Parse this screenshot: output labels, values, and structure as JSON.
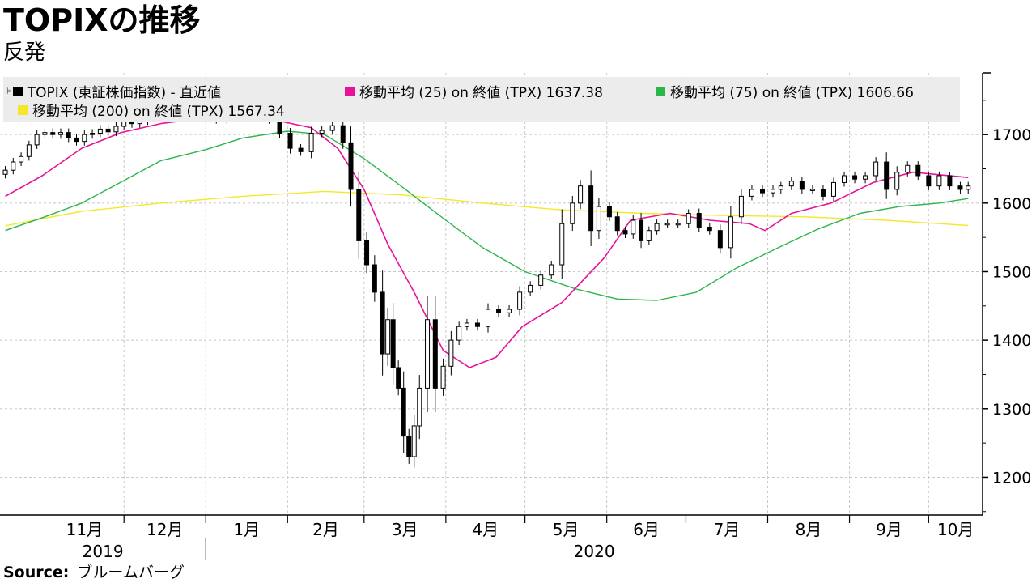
{
  "header": {
    "title": "TOPIXの推移",
    "subtitle": "反発"
  },
  "footer": {
    "source_label": "Source:",
    "source_value": "ブルームバーグ"
  },
  "legend": {
    "items": [
      {
        "label": "TOPIX (東証株価指数) - 直近値",
        "color": "#000000"
      },
      {
        "label": "移動平均 (25)  on 終値 (TPX) 1637.38",
        "color": "#e8119a"
      },
      {
        "label": "移動平均 (75)  on 終値 (TPX) 1606.66",
        "color": "#2bb54a"
      },
      {
        "label": "移動平均 (200)  on 終値 (TPX)  1567.34",
        "color": "#f5e82a"
      }
    ]
  },
  "chart_data": {
    "type": "line",
    "title": "TOPIXの推移",
    "subtitle": "反発",
    "ylim": [
      1145,
      1790
    ],
    "y_ticks": [
      1200,
      1300,
      1400,
      1500,
      1600,
      1700
    ],
    "x_month_labels": [
      "11月",
      "12月",
      "1月",
      "2月",
      "3月",
      "4月",
      "5月",
      "6月",
      "7月",
      "8月",
      "9月",
      "10月"
    ],
    "x_year_labels": [
      "2019",
      "2020"
    ],
    "grid": true,
    "legend_position": "top",
    "axis_position": "right",
    "series": [
      {
        "name": "TOPIX (東証株価指数) - 直近値",
        "kind": "candlestick",
        "color": "#000000",
        "x": [
          "2019-10-17",
          "2019-10-20",
          "2019-10-23",
          "2019-10-26",
          "2019-10-29",
          "2019-11-01",
          "2019-11-04",
          "2019-11-07",
          "2019-11-10",
          "2019-11-13",
          "2019-11-16",
          "2019-11-19",
          "2019-11-22",
          "2019-11-25",
          "2019-11-28",
          "2019-12-01",
          "2019-12-04",
          "2019-12-07",
          "2019-12-10",
          "2019-12-13",
          "2019-12-16",
          "2019-12-19",
          "2019-12-22",
          "2019-12-25",
          "2019-12-28",
          "2020-01-01",
          "2020-01-05",
          "2020-01-09",
          "2020-01-13",
          "2020-01-17",
          "2020-01-21",
          "2020-01-25",
          "2020-01-29",
          "2020-02-02",
          "2020-02-06",
          "2020-02-10",
          "2020-02-14",
          "2020-02-18",
          "2020-02-22",
          "2020-02-25",
          "2020-02-28",
          "2020-03-02",
          "2020-03-05",
          "2020-03-08",
          "2020-03-10",
          "2020-03-12",
          "2020-03-14",
          "2020-03-16",
          "2020-03-18",
          "2020-03-20",
          "2020-03-22",
          "2020-03-25",
          "2020-03-28",
          "2020-03-31",
          "2020-04-03",
          "2020-04-06",
          "2020-04-09",
          "2020-04-13",
          "2020-04-17",
          "2020-04-21",
          "2020-04-25",
          "2020-04-29",
          "2020-05-03",
          "2020-05-07",
          "2020-05-11",
          "2020-05-15",
          "2020-05-19",
          "2020-05-22",
          "2020-05-26",
          "2020-05-29",
          "2020-06-02",
          "2020-06-05",
          "2020-06-08",
          "2020-06-11",
          "2020-06-14",
          "2020-06-17",
          "2020-06-20",
          "2020-06-24",
          "2020-06-28",
          "2020-07-02",
          "2020-07-06",
          "2020-07-10",
          "2020-07-14",
          "2020-07-18",
          "2020-07-22",
          "2020-07-26",
          "2020-07-30",
          "2020-08-03",
          "2020-08-06",
          "2020-08-10",
          "2020-08-14",
          "2020-08-18",
          "2020-08-22",
          "2020-08-26",
          "2020-08-30",
          "2020-09-03",
          "2020-09-07",
          "2020-09-11",
          "2020-09-15",
          "2020-09-19",
          "2020-09-23",
          "2020-09-27",
          "2020-10-01",
          "2020-10-05",
          "2020-10-09",
          "2020-10-13",
          "2020-10-16"
        ],
        "values": [
          1648,
          1660,
          1668,
          1685,
          1700,
          1703,
          1700,
          1703,
          1695,
          1690,
          1700,
          1702,
          1708,
          1704,
          1712,
          1722,
          1716,
          1720,
          1726,
          1724,
          1730,
          1732,
          1733,
          1731,
          1735,
          1730,
          1722,
          1728,
          1735,
          1737,
          1731,
          1722,
          1702,
          1680,
          1675,
          1702,
          1706,
          1713,
          1688,
          1620,
          1545,
          1510,
          1470,
          1380,
          1430,
          1360,
          1330,
          1260,
          1230,
          1275,
          1330,
          1430,
          1330,
          1362,
          1400,
          1420,
          1425,
          1420,
          1445,
          1440,
          1445,
          1470,
          1480,
          1495,
          1510,
          1570,
          1600,
          1625,
          1560,
          1595,
          1580,
          1560,
          1555,
          1575,
          1545,
          1560,
          1570,
          1570,
          1570,
          1585,
          1565,
          1560,
          1535,
          1580,
          1610,
          1620,
          1615,
          1620,
          1625,
          1632,
          1620,
          1620,
          1610,
          1630,
          1640,
          1635,
          1640,
          1660,
          1620,
          1645,
          1655,
          1640,
          1625,
          1640,
          1625,
          1620,
          1625
        ]
      },
      {
        "name": "移動平均 (25)  on 終値 (TPX) 1637.38",
        "kind": "line",
        "color": "#e8119a",
        "x": [
          "2019-10-17",
          "2019-10-31",
          "2019-11-15",
          "2019-11-30",
          "2019-12-15",
          "2019-12-31",
          "2020-01-15",
          "2020-01-31",
          "2020-02-10",
          "2020-02-20",
          "2020-03-01",
          "2020-03-10",
          "2020-03-20",
          "2020-03-31",
          "2020-04-10",
          "2020-04-20",
          "2020-04-30",
          "2020-05-15",
          "2020-05-31",
          "2020-06-10",
          "2020-06-25",
          "2020-07-10",
          "2020-07-25",
          "2020-07-31",
          "2020-08-10",
          "2020-08-25",
          "2020-09-10",
          "2020-09-25",
          "2020-10-16"
        ],
        "values": [
          1610,
          1640,
          1680,
          1703,
          1716,
          1724,
          1730,
          1718,
          1710,
          1680,
          1620,
          1540,
          1470,
          1385,
          1360,
          1375,
          1420,
          1455,
          1520,
          1575,
          1585,
          1575,
          1570,
          1560,
          1585,
          1600,
          1630,
          1645,
          1637.38
        ]
      },
      {
        "name": "移動平均 (75)  on 終値 (TPX) 1606.66",
        "kind": "line",
        "color": "#2bb54a",
        "x": [
          "2019-10-17",
          "2019-11-01",
          "2019-11-15",
          "2019-12-01",
          "2019-12-15",
          "2020-01-01",
          "2020-01-15",
          "2020-02-01",
          "2020-02-15",
          "2020-03-01",
          "2020-03-15",
          "2020-04-01",
          "2020-04-15",
          "2020-05-01",
          "2020-05-20",
          "2020-06-05",
          "2020-06-20",
          "2020-07-05",
          "2020-07-20",
          "2020-08-05",
          "2020-08-20",
          "2020-09-05",
          "2020-09-20",
          "2020-10-05",
          "2020-10-16"
        ],
        "values": [
          1560,
          1580,
          1600,
          1633,
          1662,
          1678,
          1695,
          1705,
          1700,
          1665,
          1625,
          1575,
          1535,
          1500,
          1475,
          1460,
          1458,
          1470,
          1505,
          1535,
          1562,
          1585,
          1595,
          1600,
          1606.66
        ]
      },
      {
        "name": "移動平均 (200)  on 終値 (TPX)  1567.34",
        "kind": "line",
        "color": "#f5e82a",
        "x": [
          "2019-10-17",
          "2019-11-15",
          "2019-12-15",
          "2020-01-15",
          "2020-02-15",
          "2020-03-15",
          "2020-04-15",
          "2020-05-15",
          "2020-06-15",
          "2020-07-15",
          "2020-08-15",
          "2020-09-15",
          "2020-10-16"
        ],
        "values": [
          1567,
          1588,
          1600,
          1610,
          1617,
          1612,
          1600,
          1590,
          1585,
          1582,
          1580,
          1575,
          1567.34
        ]
      }
    ]
  }
}
